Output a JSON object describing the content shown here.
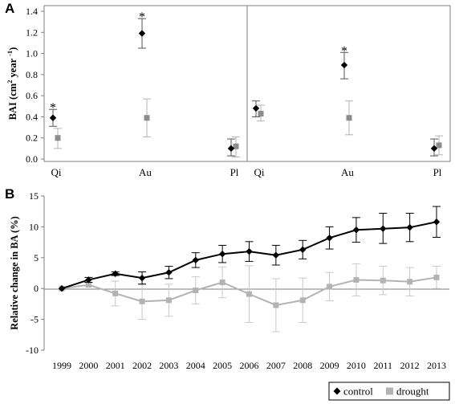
{
  "panel_a_label": "A",
  "panel_b_label": "B",
  "chart_data": [
    {
      "type": "scatter",
      "panel": "A",
      "subpanel": "left",
      "categories": [
        "Qi",
        "Au",
        "Pl"
      ],
      "ylabel_parts": {
        "lead": "BAI (cm",
        "sup1": "2",
        "mid": " year ",
        "sup2": "-1",
        "tail": ")"
      },
      "ylim": [
        0,
        1.4
      ],
      "yticks": [
        0.0,
        0.2,
        0.4,
        0.6,
        0.8,
        1.0,
        1.2,
        1.4
      ],
      "ytick_labels": [
        "0.0",
        "0.2",
        "0.4",
        "0.6",
        "0.8",
        "1.0",
        "1.2",
        "1.4"
      ],
      "series": [
        {
          "name": "control",
          "values": [
            0.39,
            1.19,
            0.1
          ],
          "err_low": [
            0.31,
            1.05,
            0.03
          ],
          "err_high": [
            0.47,
            1.33,
            0.19
          ]
        },
        {
          "name": "drought",
          "values": [
            0.2,
            0.39,
            0.12
          ],
          "err_low": [
            0.1,
            0.21,
            0.02
          ],
          "err_high": [
            0.29,
            0.57,
            0.21
          ]
        }
      ],
      "significance": [
        "*",
        "*",
        ""
      ]
    },
    {
      "type": "scatter",
      "panel": "A",
      "subpanel": "right",
      "categories": [
        "Qi",
        "Au",
        "Pl"
      ],
      "ylim": [
        0,
        1.4
      ],
      "series": [
        {
          "name": "control",
          "values": [
            0.48,
            0.89,
            0.1
          ],
          "err_low": [
            0.4,
            0.76,
            0.03
          ],
          "err_high": [
            0.55,
            1.01,
            0.19
          ]
        },
        {
          "name": "drought",
          "values": [
            0.43,
            0.39,
            0.13
          ],
          "err_low": [
            0.36,
            0.23,
            0.04
          ],
          "err_high": [
            0.51,
            0.55,
            0.22
          ]
        }
      ],
      "significance": [
        "",
        "*",
        ""
      ]
    },
    {
      "type": "line",
      "panel": "B",
      "x": [
        1999,
        2000,
        2001,
        2002,
        2003,
        2004,
        2005,
        2006,
        2007,
        2008,
        2009,
        2010,
        2011,
        2012,
        2013
      ],
      "ylabel": "Relative change in BA (%)",
      "ylim": [
        -10,
        15
      ],
      "yticks": [
        -10,
        -5,
        0,
        5,
        10,
        15
      ],
      "ytick_labels": [
        "-10",
        "-5",
        "0",
        "5",
        "10",
        "15"
      ],
      "series": [
        {
          "name": "control",
          "values": [
            0,
            1.4,
            2.4,
            1.7,
            2.6,
            4.6,
            5.6,
            6.0,
            5.4,
            6.3,
            8.2,
            9.5,
            9.7,
            9.9,
            10.8
          ],
          "err_low": [
            0,
            1.0,
            2.1,
            0.7,
            1.6,
            3.4,
            4.2,
            4.4,
            3.8,
            4.8,
            6.4,
            7.5,
            7.3,
            7.6,
            8.3
          ],
          "err_high": [
            0,
            1.8,
            2.7,
            2.7,
            3.6,
            5.8,
            7.0,
            7.6,
            7.0,
            7.8,
            10.0,
            11.5,
            12.2,
            12.2,
            13.3
          ]
        },
        {
          "name": "drought",
          "values": [
            0,
            0.6,
            -0.8,
            -2.1,
            -1.9,
            -0.3,
            1.0,
            -0.9,
            -2.7,
            -1.9,
            0.3,
            1.4,
            1.3,
            1.1,
            1.8
          ],
          "err_low": [
            0,
            0.3,
            -2.8,
            -5.0,
            -4.5,
            -2.5,
            -1.5,
            -5.5,
            -7.0,
            -5.5,
            -2.0,
            -1.2,
            -1.0,
            -1.2,
            0.0
          ],
          "err_high": [
            0,
            0.9,
            1.2,
            0.8,
            0.7,
            1.9,
            3.5,
            3.7,
            1.6,
            1.7,
            2.6,
            4.0,
            3.6,
            3.4,
            3.6
          ]
        }
      ],
      "legend_position": "bottom-right"
    }
  ],
  "legend": {
    "control_label": "control",
    "drought_label": "drought"
  },
  "colors": {
    "control": "#000000",
    "drought": "#b3b3b3",
    "drought_marker": "#8c8c8c",
    "axis": "#7f7f7f"
  }
}
